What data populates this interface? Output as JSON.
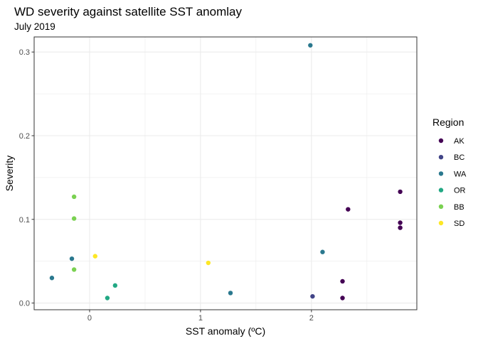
{
  "chart_data": {
    "type": "scatter",
    "title": "WD severity against satellite SST anomlay",
    "subtitle": "July 2019",
    "xlabel": "SST anomaly (ºC)",
    "ylabel": "Severity",
    "xlim": [
      -0.5,
      2.95
    ],
    "ylim": [
      -0.008,
      0.318
    ],
    "xticks": [
      0,
      1,
      2
    ],
    "xtick_labels": [
      "0",
      "1",
      "2"
    ],
    "yticks": [
      0.0,
      0.1,
      0.2,
      0.3
    ],
    "ytick_labels": [
      "0.0",
      "0.1",
      "0.2",
      "0.3"
    ],
    "grid": true,
    "legend": {
      "title": "Region",
      "position": "right"
    },
    "series": [
      {
        "name": "AK",
        "color": "#440154",
        "x": [
          2.33,
          2.8,
          2.8,
          2.8,
          2.28,
          2.28
        ],
        "y": [
          0.112,
          0.133,
          0.096,
          0.09,
          0.026,
          0.006
        ]
      },
      {
        "name": "BC",
        "color": "#414487",
        "x": [
          2.01
        ],
        "y": [
          0.008
        ]
      },
      {
        "name": "WA",
        "color": "#2A788E",
        "x": [
          1.99,
          2.1,
          -0.16,
          -0.34,
          1.27
        ],
        "y": [
          0.308,
          0.061,
          0.053,
          0.03,
          0.012
        ]
      },
      {
        "name": "OR",
        "color": "#22A884",
        "x": [
          0.23,
          0.16
        ],
        "y": [
          0.021,
          0.006
        ]
      },
      {
        "name": "BB",
        "color": "#7AD151",
        "x": [
          -0.14,
          -0.14,
          -0.14
        ],
        "y": [
          0.127,
          0.101,
          0.04
        ]
      },
      {
        "name": "SD",
        "color": "#FDE725",
        "x": [
          0.05,
          1.07
        ],
        "y": [
          0.056,
          0.048
        ]
      }
    ]
  }
}
